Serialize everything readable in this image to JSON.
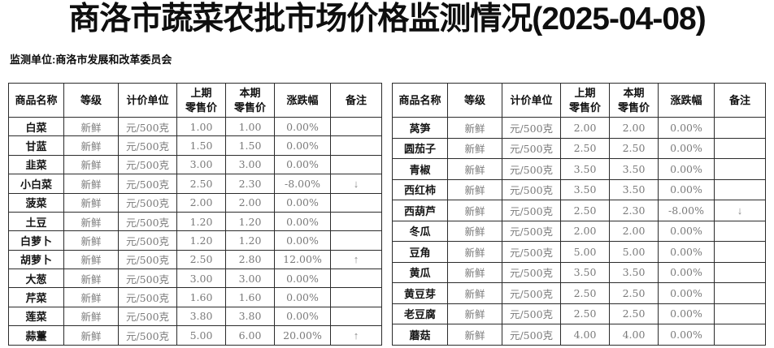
{
  "title": "商洛市蔬菜农批市场价格监测情况(2025-04-08)",
  "subtitle": "监测单位:商洛市发展和改革委员会",
  "colors": {
    "background": "#ffffff",
    "border": "#2b2b2b",
    "heading_text": "#0e0e0e",
    "muted_text": "#7a7a7a",
    "arrow": "#8a8a8a"
  },
  "columns": [
    {
      "id": "name",
      "label": "商品名称"
    },
    {
      "id": "grade",
      "label": "等级"
    },
    {
      "id": "unit",
      "label": "计价单位"
    },
    {
      "id": "prev",
      "label": "上期\n零售价"
    },
    {
      "id": "curr",
      "label": "本期\n零售价"
    },
    {
      "id": "change",
      "label": "涨跌幅"
    },
    {
      "id": "remark",
      "label": "备注"
    }
  ],
  "tables": {
    "left": {
      "rows": [
        {
          "name": "白菜",
          "grade": "新鲜",
          "unit": "元/500克",
          "prev": "1.00",
          "curr": "1.00",
          "change": "0.00%",
          "remark": ""
        },
        {
          "name": "甘蓝",
          "grade": "新鲜",
          "unit": "元/500克",
          "prev": "1.50",
          "curr": "1.50",
          "change": "0.00%",
          "remark": ""
        },
        {
          "name": "韭菜",
          "grade": "新鲜",
          "unit": "元/500克",
          "prev": "3.00",
          "curr": "3.00",
          "change": "0.00%",
          "remark": ""
        },
        {
          "name": "小白菜",
          "grade": "新鲜",
          "unit": "元/500克",
          "prev": "2.50",
          "curr": "2.30",
          "change": "-8.00%",
          "remark": "down"
        },
        {
          "name": "菠菜",
          "grade": "新鲜",
          "unit": "元/500克",
          "prev": "2.00",
          "curr": "2.00",
          "change": "0.00%",
          "remark": ""
        },
        {
          "name": "土豆",
          "grade": "新鲜",
          "unit": "元/500克",
          "prev": "1.20",
          "curr": "1.20",
          "change": "0.00%",
          "remark": ""
        },
        {
          "name": "白萝卜",
          "grade": "新鲜",
          "unit": "元/500克",
          "prev": "1.20",
          "curr": "1.20",
          "change": "0.00%",
          "remark": ""
        },
        {
          "name": "胡萝卜",
          "grade": "新鲜",
          "unit": "元/500克",
          "prev": "2.50",
          "curr": "2.80",
          "change": "12.00%",
          "remark": "up"
        },
        {
          "name": "大葱",
          "grade": "新鲜",
          "unit": "元/500克",
          "prev": "3.00",
          "curr": "3.00",
          "change": "0.00%",
          "remark": ""
        },
        {
          "name": "芹菜",
          "grade": "新鲜",
          "unit": "元/500克",
          "prev": "1.60",
          "curr": "1.60",
          "change": "0.00%",
          "remark": ""
        },
        {
          "name": "莲菜",
          "grade": "新鲜",
          "unit": "元/500克",
          "prev": "3.80",
          "curr": "3.80",
          "change": "0.00%",
          "remark": ""
        },
        {
          "name": "蒜薹",
          "grade": "新鲜",
          "unit": "元/500克",
          "prev": "5.00",
          "curr": "6.00",
          "change": "20.00%",
          "remark": "up"
        }
      ]
    },
    "right": {
      "rows": [
        {
          "name": "莴笋",
          "grade": "新鲜",
          "unit": "元/500克",
          "prev": "2.00",
          "curr": "2.00",
          "change": "0.00%",
          "remark": ""
        },
        {
          "name": "圆茄子",
          "grade": "新鲜",
          "unit": "元/500克",
          "prev": "2.50",
          "curr": "2.50",
          "change": "0.00%",
          "remark": ""
        },
        {
          "name": "青椒",
          "grade": "新鲜",
          "unit": "元/500克",
          "prev": "3.50",
          "curr": "3.50",
          "change": "0.00%",
          "remark": ""
        },
        {
          "name": "西红柿",
          "grade": "新鲜",
          "unit": "元/500克",
          "prev": "3.50",
          "curr": "3.50",
          "change": "0.00%",
          "remark": ""
        },
        {
          "name": "西葫芦",
          "grade": "新鲜",
          "unit": "元/500克",
          "prev": "2.50",
          "curr": "2.30",
          "change": "-8.00%",
          "remark": "down"
        },
        {
          "name": "冬瓜",
          "grade": "新鲜",
          "unit": "元/500克",
          "prev": "2.00",
          "curr": "2.00",
          "change": "0.00%",
          "remark": ""
        },
        {
          "name": "豆角",
          "grade": "新鲜",
          "unit": "元/500克",
          "prev": "5.00",
          "curr": "5.00",
          "change": "0.00%",
          "remark": ""
        },
        {
          "name": "黄瓜",
          "grade": "新鲜",
          "unit": "元/500克",
          "prev": "3.50",
          "curr": "3.50",
          "change": "0.00%",
          "remark": ""
        },
        {
          "name": "黄豆芽",
          "grade": "新鲜",
          "unit": "元/500克",
          "prev": "2.50",
          "curr": "2.50",
          "change": "0.00%",
          "remark": ""
        },
        {
          "name": "老豆腐",
          "grade": "新鲜",
          "unit": "元/500克",
          "prev": "2.50",
          "curr": "2.50",
          "change": "0.00%",
          "remark": ""
        },
        {
          "name": "蘑菇",
          "grade": "新鲜",
          "unit": "元/500克",
          "prev": "4.00",
          "curr": "4.00",
          "change": "0.00%",
          "remark": ""
        }
      ]
    }
  },
  "icons": {
    "trend_up": "↑",
    "trend_down": "↓"
  }
}
